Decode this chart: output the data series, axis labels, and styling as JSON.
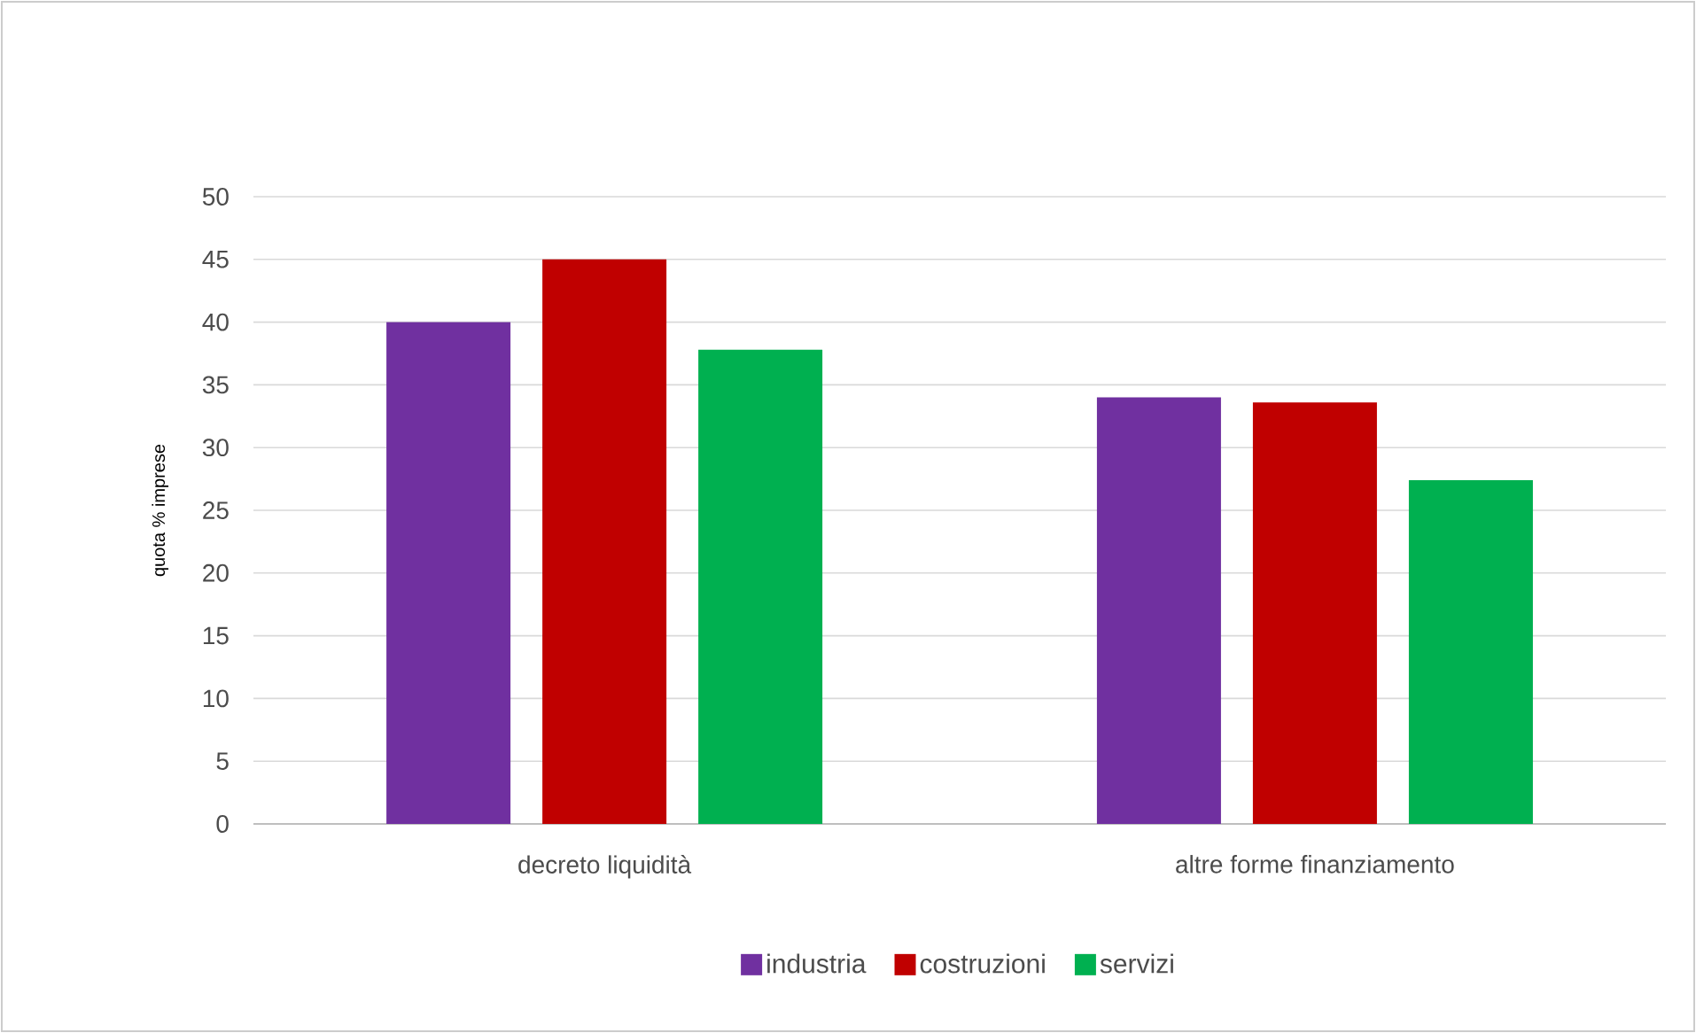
{
  "chart_data": {
    "type": "bar",
    "ylabel": "quota % imprese",
    "categories": [
      "decreto liquidità",
      "altre forme finanziamento"
    ],
    "series": [
      {
        "name": "industria",
        "color": "#7030a0",
        "values": [
          40,
          34
        ]
      },
      {
        "name": "costruzioni",
        "color": "#c00000",
        "values": [
          45,
          33.6
        ]
      },
      {
        "name": "servizi",
        "color": "#00b050",
        "values": [
          37.8,
          27.4
        ]
      }
    ],
    "ylim": [
      0,
      50
    ],
    "yticks": [
      0,
      5,
      10,
      15,
      20,
      25,
      30,
      35,
      40,
      45,
      50
    ],
    "grid": "y",
    "legend": "bottom"
  }
}
